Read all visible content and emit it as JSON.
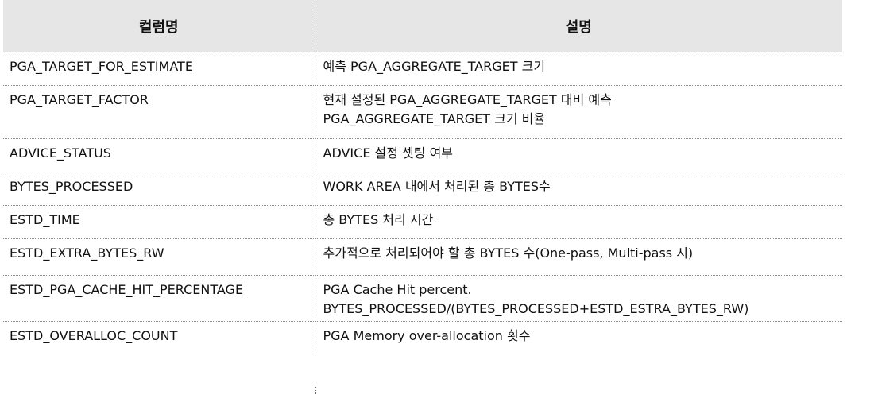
{
  "table": {
    "headers": [
      "컬럼명",
      "설명"
    ],
    "rows": [
      {
        "column": "PGA_TARGET_FOR_ESTIMATE",
        "desc1": "예측 PGA_AGGREGATE_TARGET 크기",
        "desc2": ""
      },
      {
        "column": "PGA_TARGET_FACTOR",
        "desc1": "현재 설정된 PGA_AGGREGATE_TARGET 대비 예측",
        "desc2": "PGA_AGGREGATE_TARGET 크기 비율"
      },
      {
        "column": "ADVICE_STATUS",
        "desc1": "ADVICE 설정 셋팅 여부",
        "desc2": ""
      },
      {
        "column": "BYTES_PROCESSED",
        "desc1": "WORK AREA 내에서 처리된 총 BYTES수",
        "desc2": ""
      },
      {
        "column": "ESTD_TIME",
        "desc1": "총 BYTES 처리 시간",
        "desc2": ""
      },
      {
        "column": "ESTD_EXTRA_BYTES_RW",
        "desc1": "추가적으로 처리되어야 할 총 BYTES 수(One-pass, Multi-pass 시)",
        "desc2": ""
      },
      {
        "column": "ESTD_PGA_CACHE_HIT_PERCENTAGE",
        "desc1": "PGA Cache Hit percent.",
        "desc2": "BYTES_PROCESSED/(BYTES_PROCESSED+ESTD_ESTRA_BYTES_RW)"
      },
      {
        "column": "ESTD_OVERALLOC_COUNT",
        "desc1": "PGA Memory over-allocation 횟수",
        "desc2": ""
      }
    ]
  },
  "colors": {
    "header_bg": "#e7e6e6",
    "text": "#111111",
    "border": "#7a7a7a"
  }
}
